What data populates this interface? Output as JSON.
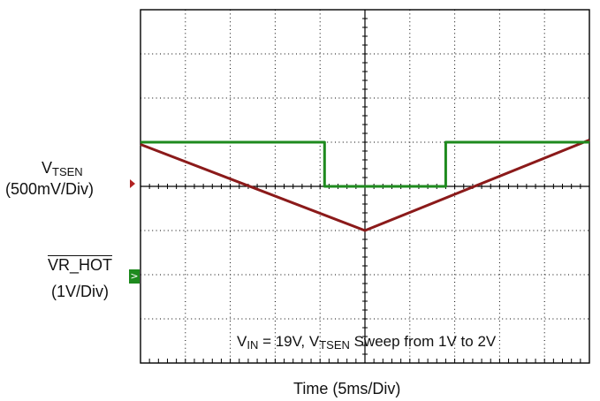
{
  "chart_data": {
    "type": "line",
    "xlabel": "Time (5ms/Div)",
    "x_divisions": 10,
    "y_divisions": 8,
    "grid": true,
    "annotation": {
      "v": "V",
      "in_sub": "IN",
      "mid": " = 19V, V",
      "tsen_sub": "TSEN",
      "tail": " Sweep from 1V to 2V"
    },
    "channels": [
      {
        "id": "ch1",
        "label_main": "V",
        "label_sub": "TSEN",
        "scale": "(500mV/Div)",
        "color": "#8b1a1a",
        "x_div": [
          0,
          5,
          10
        ],
        "y_div": [
          4.95,
          3.0,
          5.05
        ]
      },
      {
        "id": "ch2",
        "label_main": "VR_HOT",
        "scale": "(1V/Div)",
        "color": "#1e8a1e",
        "marker": ">",
        "x_div": [
          0,
          4.1,
          4.1,
          6.8,
          6.8,
          10
        ],
        "y_div": [
          5.0,
          5.0,
          4.0,
          4.0,
          5.0,
          5.0
        ]
      }
    ]
  }
}
